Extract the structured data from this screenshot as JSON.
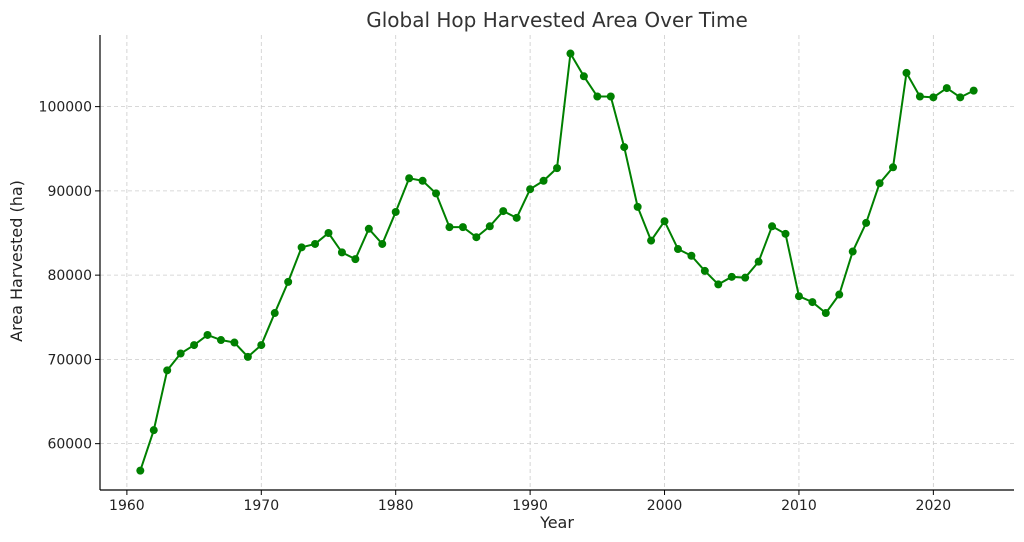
{
  "chart_data": {
    "type": "line",
    "title": "Global Hop Harvested Area Over Time",
    "xlabel": "Year",
    "ylabel": "Area Harvested (ha)",
    "xlim": [
      1958,
      2026
    ],
    "ylim": [
      54500,
      108500
    ],
    "xticks": [
      1960,
      1970,
      1980,
      1990,
      2000,
      2010,
      2020
    ],
    "yticks": [
      60000,
      70000,
      80000,
      90000,
      100000
    ],
    "grid": true,
    "line_color": "#008000",
    "x": [
      1961,
      1962,
      1963,
      1964,
      1965,
      1966,
      1967,
      1968,
      1969,
      1970,
      1971,
      1972,
      1973,
      1974,
      1975,
      1976,
      1977,
      1978,
      1979,
      1980,
      1981,
      1982,
      1983,
      1984,
      1985,
      1986,
      1987,
      1988,
      1989,
      1990,
      1991,
      1992,
      1993,
      1994,
      1995,
      1996,
      1997,
      1998,
      1999,
      2000,
      2001,
      2002,
      2003,
      2004,
      2005,
      2006,
      2007,
      2008,
      2009,
      2010,
      2011,
      2012,
      2013,
      2014,
      2015,
      2016,
      2017,
      2018,
      2019,
      2020,
      2021,
      2022,
      2023
    ],
    "y": [
      56800,
      61600,
      68700,
      70700,
      71700,
      72900,
      72300,
      72000,
      70300,
      71700,
      75500,
      79200,
      83300,
      83700,
      85000,
      82700,
      81900,
      85500,
      83700,
      87500,
      91500,
      91200,
      89700,
      85700,
      85700,
      84500,
      85800,
      87600,
      86800,
      90200,
      91200,
      92700,
      106300,
      103600,
      101200,
      101200,
      95200,
      88100,
      84100,
      86400,
      83100,
      82300,
      80500,
      78900,
      79800,
      79700,
      81600,
      85800,
      84900,
      77500,
      76800,
      75500,
      77700,
      82800,
      86200,
      90900,
      92800,
      104000,
      101200,
      101100,
      102200,
      101100,
      101900
    ]
  }
}
